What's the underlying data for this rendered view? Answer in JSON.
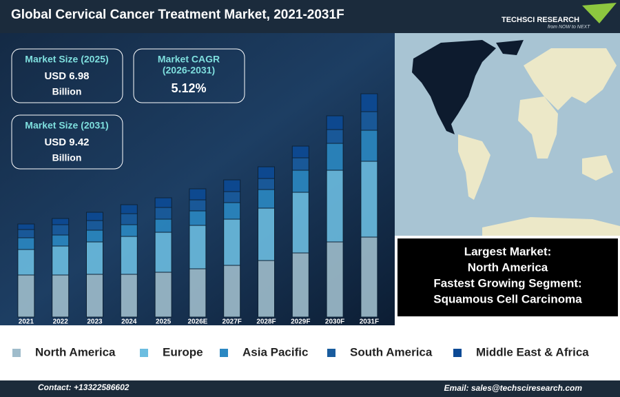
{
  "header": {
    "title": "Global Cervical Cancer Treatment Market, 2021-2031F",
    "logo": "TECHSCI RESEARCH",
    "tagline": "from NOW to NEXT"
  },
  "cards": [
    {
      "title": [
        "Market Size (2025)"
      ],
      "value": "USD 6.98",
      "unit": "Billion"
    },
    {
      "title": [
        "Market CAGR",
        "(2026-2031)"
      ],
      "value": "5.12%"
    },
    {
      "title": [
        "Market Size (2031)"
      ],
      "value": "USD 9.42",
      "unit": "Billion"
    }
  ],
  "highlight": [
    "Largest Market:",
    "North America",
    "Fastest Growing Segment:",
    "Squamous Cell Carcinoma"
  ],
  "footer": {
    "contact": "Contact: +13322586602",
    "email": "Email: sales@techsciresearch.com"
  },
  "chart_data": {
    "type": "stacked-bar",
    "categories": [
      "2021",
      "2022",
      "2023",
      "2024",
      "2025",
      "2026E",
      "2027F",
      "2028F",
      "2029F",
      "2030F",
      "2031F"
    ],
    "series": [
      {
        "name": "North America",
        "color": "#9fbccb",
        "values": [
          61,
          61,
          62,
          62,
          65,
          70,
          75,
          82,
          93,
          109,
          116
        ]
      },
      {
        "name": "Europe",
        "color": "#6cbde0",
        "values": [
          37,
          42,
          47,
          55,
          58,
          63,
          67,
          76,
          88,
          104,
          110
        ]
      },
      {
        "name": "Asia Pacific",
        "color": "#2b88c2",
        "values": [
          17,
          16,
          17,
          17,
          19,
          21,
          24,
          27,
          32,
          39,
          45
        ]
      },
      {
        "name": "South America",
        "color": "#195c9e",
        "values": [
          12,
          15,
          14,
          16,
          17,
          16,
          16,
          16,
          18,
          20,
          27
        ]
      },
      {
        "name": "Middle East & Africa",
        "color": "#0c4a95",
        "values": [
          8,
          9,
          12,
          13,
          14,
          16,
          17,
          17,
          17,
          20,
          26
        ]
      }
    ]
  }
}
